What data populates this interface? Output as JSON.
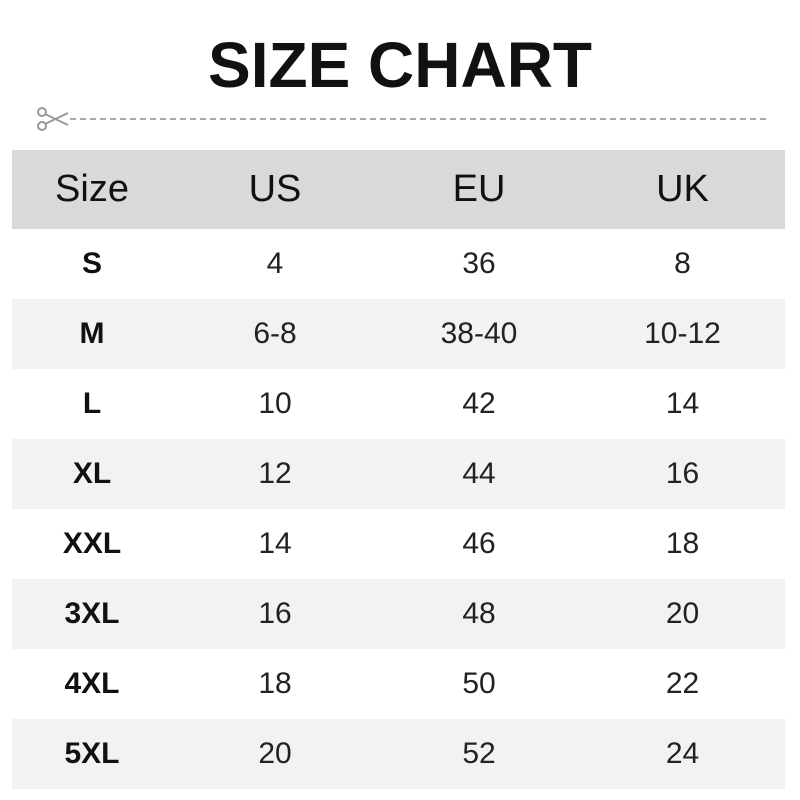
{
  "title": "SIZE CHART",
  "headers": [
    "Size",
    "US",
    "EU",
    "UK"
  ],
  "rows": [
    [
      "S",
      "4",
      "36",
      "8"
    ],
    [
      "M",
      "6-8",
      "38-40",
      "10-12"
    ],
    [
      "L",
      "10",
      "42",
      "14"
    ],
    [
      "XL",
      "12",
      "44",
      "16"
    ],
    [
      "XXL",
      "14",
      "46",
      "18"
    ],
    [
      "3XL",
      "16",
      "48",
      "20"
    ],
    [
      "4XL",
      "18",
      "50",
      "22"
    ],
    [
      "5XL",
      "20",
      "52",
      "24"
    ]
  ],
  "colors": {
    "header_bg": "#d9d9d9",
    "alt_row_bg": "#f2f2f2"
  },
  "icons": {
    "cut_line": "scissors-icon"
  }
}
